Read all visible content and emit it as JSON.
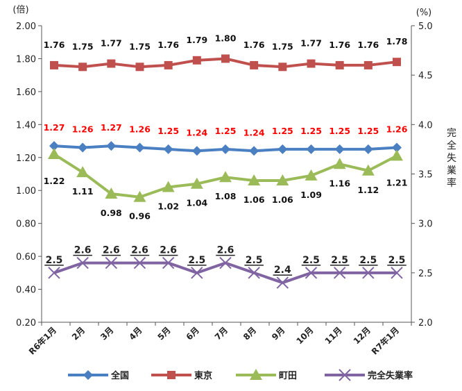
{
  "chart_data": {
    "type": "line",
    "categories": [
      "R6年1月",
      "2月",
      "3月",
      "4月",
      "5月",
      "6月",
      "7月",
      "8月",
      "9月",
      "10月",
      "11月",
      "12月",
      "R7年1月"
    ],
    "y_left": {
      "unit": "(倍)",
      "ylim": [
        0.2,
        2.0
      ],
      "ticks": [
        "0.20",
        "0.40",
        "0.60",
        "0.80",
        "1.00",
        "1.20",
        "1.40",
        "1.60",
        "1.80",
        "2.00"
      ]
    },
    "y_right": {
      "unit": "(%)",
      "label": "完全失業率",
      "ylim": [
        2.0,
        5.0
      ],
      "ticks": [
        "2.0",
        "2.5",
        "3.0",
        "3.5",
        "4.0",
        "4.5",
        "5.0"
      ]
    },
    "grid": false,
    "legend_position": "bottom",
    "series": [
      {
        "name": "全国",
        "axis": "left",
        "color": "#4a7fc1",
        "marker": "diamond",
        "values": [
          1.27,
          1.26,
          1.27,
          1.26,
          1.25,
          1.24,
          1.25,
          1.24,
          1.25,
          1.25,
          1.25,
          1.25,
          1.26
        ],
        "labels": [
          "1.27",
          "1.26",
          "1.27",
          "1.26",
          "1.25",
          "1.24",
          "1.25",
          "1.24",
          "1.25",
          "1.25",
          "1.25",
          "1.25",
          "1.26"
        ],
        "label_color": "#ff0000"
      },
      {
        "name": "東京",
        "axis": "left",
        "color": "#c0504d",
        "marker": "square",
        "values": [
          1.76,
          1.75,
          1.77,
          1.75,
          1.76,
          1.79,
          1.8,
          1.76,
          1.75,
          1.77,
          1.76,
          1.76,
          1.78
        ],
        "labels": [
          "1.76",
          "1.75",
          "1.77",
          "1.75",
          "1.76",
          "1.79",
          "1.80",
          "1.76",
          "1.75",
          "1.77",
          "1.76",
          "1.76",
          "1.78"
        ],
        "label_color": "#111111"
      },
      {
        "name": "町田",
        "axis": "left",
        "color": "#9bbb59",
        "marker": "triangle",
        "values": [
          1.22,
          1.11,
          0.98,
          0.96,
          1.02,
          1.04,
          1.08,
          1.06,
          1.06,
          1.09,
          1.16,
          1.12,
          1.21
        ],
        "labels": [
          "1.22",
          "1.11",
          "0.98",
          "0.96",
          "1.02",
          "1.04",
          "1.08",
          "1.06",
          "1.06",
          "1.09",
          "1.16",
          "1.12",
          "1.21"
        ],
        "label_color": "#111111"
      },
      {
        "name": "完全失業率",
        "axis": "right",
        "color": "#8064a2",
        "marker": "x",
        "values": [
          2.5,
          2.6,
          2.6,
          2.6,
          2.6,
          2.5,
          2.6,
          2.5,
          2.4,
          2.5,
          2.5,
          2.5,
          2.5
        ],
        "labels": [
          "2.5",
          "2.6",
          "2.6",
          "2.6",
          "2.6",
          "2.5",
          "2.6",
          "2.5",
          "2.4",
          "2.5",
          "2.5",
          "2.5",
          "2.5"
        ],
        "label_color": "#111111"
      }
    ]
  }
}
